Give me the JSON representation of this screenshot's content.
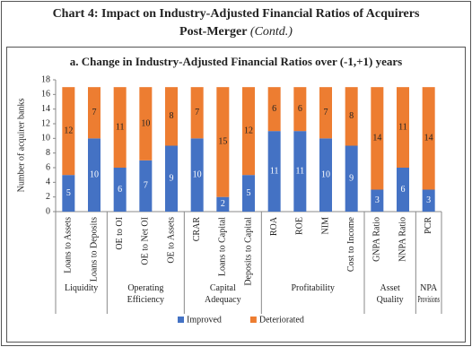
{
  "chart_data": {
    "type": "stacked_bar",
    "title": "Chart 4: Impact on Industry-Adjusted Financial Ratios of Acquirers",
    "title_line2": "Post-Merger",
    "title_note": "(Contd.)",
    "subtitle": "a. Change in Industry-Adjusted Financial Ratios over (-1,+1) years",
    "y_label": "Number of acquirer banks",
    "categories": [
      "Loans to Assets",
      "Loans to Deposits",
      "OE to OI",
      "OE to Net OI",
      "OE to Assets",
      "CRAR",
      "Loans to Capital",
      "Deposits to Capital",
      "ROA",
      "ROE",
      "NIM",
      "Cost to Income",
      "GNPA Ratio",
      "NNPA Ratio",
      "PCR"
    ],
    "groups": [
      {
        "label": "Liquidity",
        "span": 2
      },
      {
        "label": "Operating Efficiency",
        "span": 3
      },
      {
        "label": "Capital Adequacy",
        "span": 3
      },
      {
        "label": "Profitability",
        "span": 4
      },
      {
        "label": "Asset Quality",
        "span": 2
      },
      {
        "label": "NPA Provisions",
        "span": 1
      }
    ],
    "series": [
      {
        "name": "Improved",
        "color": "#4472c4",
        "values": [
          5,
          10,
          6,
          7,
          9,
          10,
          2,
          5,
          11,
          11,
          10,
          9,
          3,
          6,
          3
        ]
      },
      {
        "name": "Deteriorated",
        "color": "#ed7d31",
        "values": [
          12,
          7,
          11,
          10,
          8,
          7,
          15,
          12,
          6,
          6,
          7,
          8,
          14,
          11,
          14
        ]
      }
    ],
    "ylim": [
      0,
      18
    ],
    "yticks": [
      0,
      2,
      4,
      6,
      8,
      10,
      12,
      14,
      16,
      18
    ],
    "legend": "bottom"
  }
}
